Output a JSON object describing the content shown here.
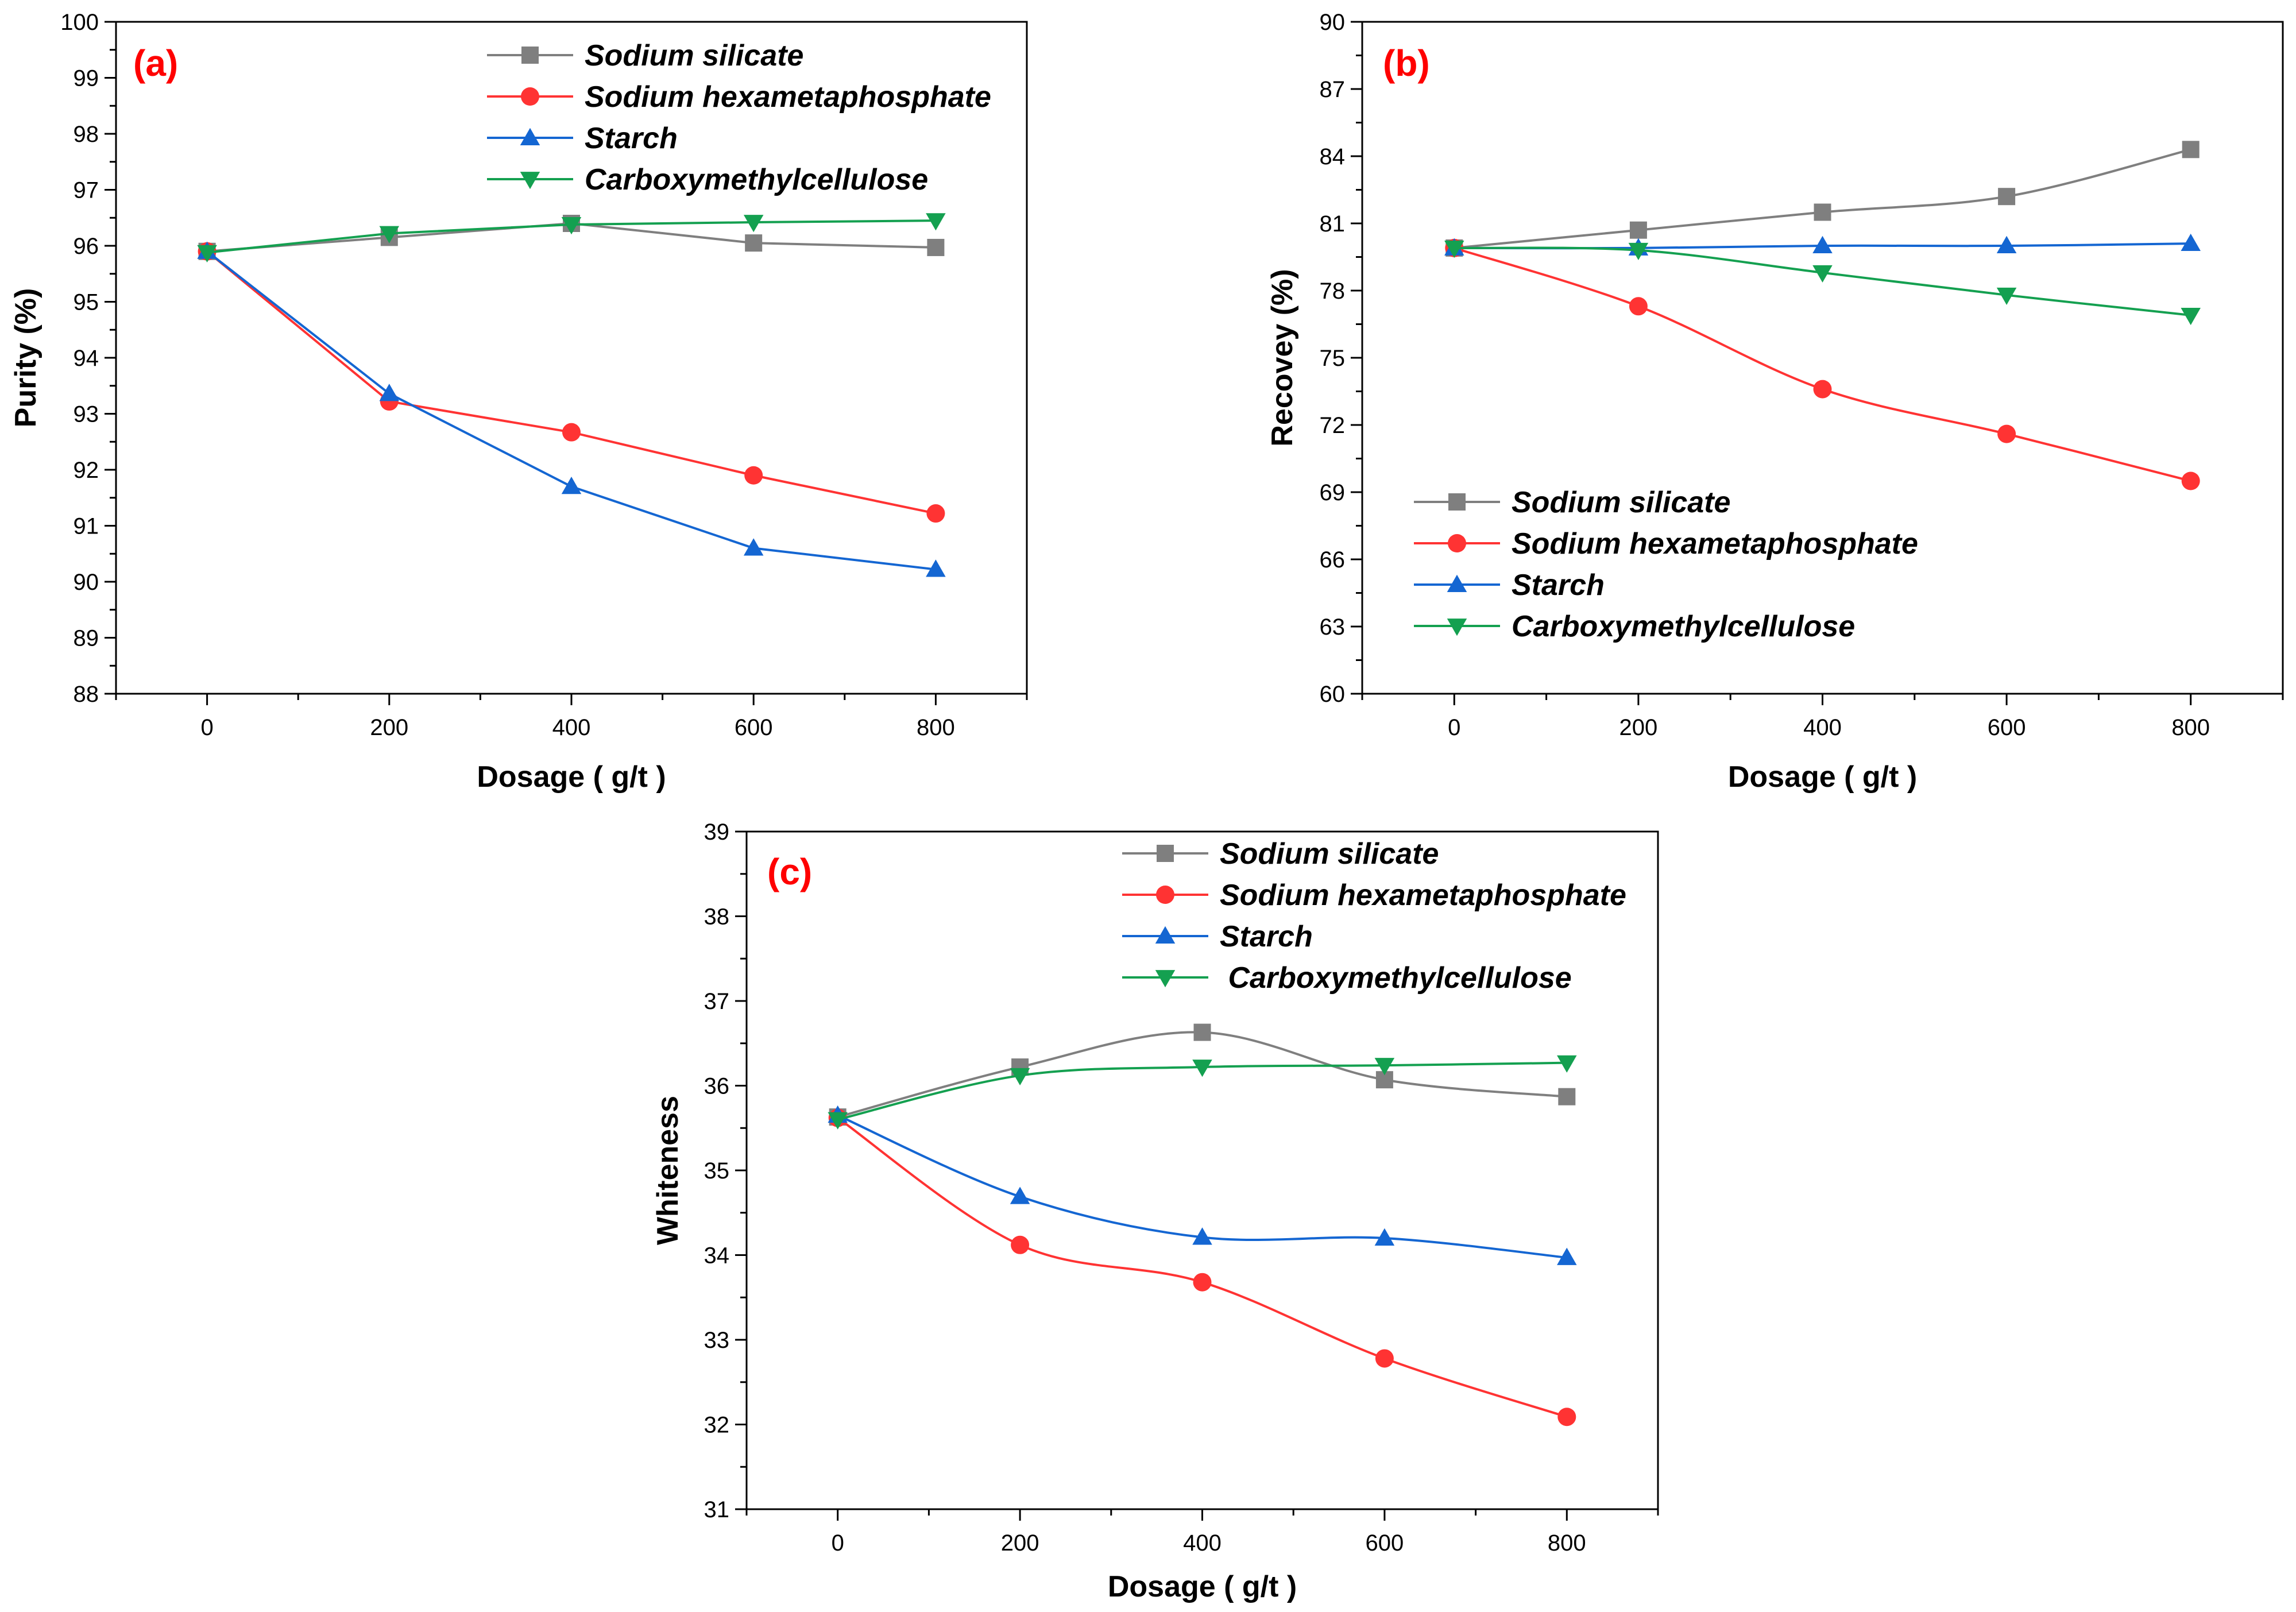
{
  "chart_data": [
    {
      "type": "line",
      "panel_label": "(a)",
      "xlabel": "Dosage ( g/t )",
      "ylabel": "Purity (%)",
      "x": [
        0,
        200,
        400,
        600,
        800
      ],
      "xticks": [
        0,
        200,
        400,
        600,
        800
      ],
      "xlim": [
        -100,
        900
      ],
      "ylim": [
        88,
        100
      ],
      "yticks": [
        88,
        89,
        90,
        91,
        92,
        93,
        94,
        95,
        96,
        97,
        98,
        99,
        100
      ],
      "grid": false,
      "legend_position": "top-center",
      "series": [
        {
          "name": "Sodium silicate",
          "values": [
            95.9,
            96.15,
            96.4,
            96.05,
            95.97
          ],
          "color": "#7f7f7f",
          "marker": "square",
          "smooth": false
        },
        {
          "name": "Sodium hexametaphosphate",
          "values": [
            95.9,
            93.22,
            92.67,
            91.9,
            91.22
          ],
          "color": "#ff3333",
          "marker": "circle",
          "smooth": false
        },
        {
          "name": "Starch",
          "values": [
            95.9,
            93.36,
            91.7,
            90.6,
            90.22
          ],
          "color": "#1466d2",
          "marker": "triangle-up",
          "smooth": false
        },
        {
          "name": "Carboxymethylcellulose",
          "values": [
            95.88,
            96.22,
            96.38,
            96.42,
            96.45
          ],
          "color": "#14a050",
          "marker": "triangle-down",
          "smooth": false
        }
      ]
    },
    {
      "type": "line",
      "panel_label": "(b)",
      "xlabel": "Dosage ( g/t )",
      "ylabel": "Recovey (%)",
      "x": [
        0,
        200,
        400,
        600,
        800
      ],
      "xticks": [
        0,
        200,
        400,
        600,
        800
      ],
      "xlim": [
        -100,
        900
      ],
      "ylim": [
        60,
        90
      ],
      "yticks": [
        60,
        63,
        66,
        69,
        72,
        75,
        78,
        81,
        84,
        87,
        90
      ],
      "grid": false,
      "legend_position": "bottom-left",
      "series": [
        {
          "name": "Sodium silicate",
          "values": [
            79.9,
            80.7,
            81.5,
            82.2,
            84.3
          ],
          "color": "#7f7f7f",
          "marker": "square",
          "smooth": true
        },
        {
          "name": "Sodium hexametaphosphate",
          "values": [
            79.9,
            77.3,
            73.6,
            71.6,
            69.5
          ],
          "color": "#ff3333",
          "marker": "circle",
          "smooth": true
        },
        {
          "name": "Starch",
          "values": [
            79.9,
            79.9,
            80.0,
            80.0,
            80.1
          ],
          "color": "#1466d2",
          "marker": "triangle-up",
          "smooth": true
        },
        {
          "name": "Carboxymethylcellulose",
          "values": [
            79.9,
            79.8,
            78.8,
            77.8,
            76.9
          ],
          "color": "#14a050",
          "marker": "triangle-down",
          "smooth": true
        }
      ]
    },
    {
      "type": "line",
      "panel_label": "(c)",
      "xlabel": "Dosage ( g/t )",
      "ylabel": "Whiteness",
      "x": [
        0,
        200,
        400,
        600,
        800
      ],
      "xticks": [
        0,
        200,
        400,
        600,
        800
      ],
      "xlim": [
        -100,
        900
      ],
      "ylim": [
        31,
        39
      ],
      "yticks": [
        31,
        32,
        33,
        34,
        35,
        36,
        37,
        38,
        39
      ],
      "grid": false,
      "legend_position": "top-center",
      "series": [
        {
          "name": "Sodium silicate",
          "values": [
            35.63,
            36.22,
            36.63,
            36.07,
            35.87
          ],
          "color": "#7f7f7f",
          "marker": "square",
          "smooth": true
        },
        {
          "name": "Sodium hexametaphosphate",
          "values": [
            35.62,
            34.12,
            33.68,
            32.78,
            32.09
          ],
          "color": "#ff3333",
          "marker": "circle",
          "smooth": true
        },
        {
          "name": "Starch",
          "values": [
            35.65,
            34.69,
            34.21,
            34.2,
            33.97
          ],
          "color": "#1466d2",
          "marker": "triangle-up",
          "smooth": true
        },
        {
          "name": "Carboxymethylcellulose",
          "values": [
            35.6,
            36.12,
            36.22,
            36.24,
            36.27
          ],
          "color": "#14a050",
          "marker": "triangle-down",
          "smooth": true
        }
      ]
    }
  ],
  "legend_display_names": [
    [
      "Sodium silicate",
      "Sodium hexametaphosphate",
      "Starch",
      "Carboxymethylcellulose"
    ],
    [
      "Sodium silicate",
      "Sodium hexametaphosphate",
      "Starch",
      "Carboxymethylcellulose"
    ],
    [
      "Sodium silicate",
      "Sodium hexametaphosphate",
      "Starch",
      " Carboxymethylcellulose"
    ]
  ]
}
